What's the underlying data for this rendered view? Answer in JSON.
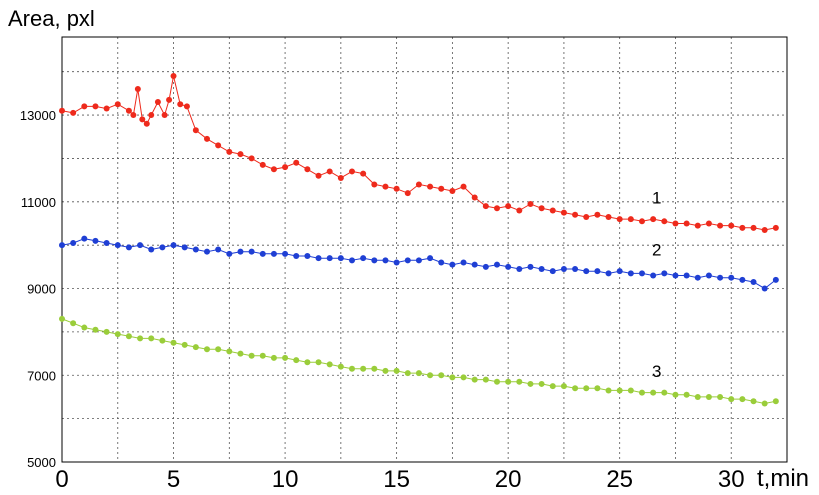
{
  "chart_data": {
    "type": "scatter",
    "ylabel": "Area, pxl",
    "xlabel": "t,min",
    "xlim": [
      0,
      32.5
    ],
    "ylim": [
      5000,
      14800
    ],
    "x_ticks": [
      0,
      5,
      10,
      15,
      20,
      25,
      30
    ],
    "y_ticks": [
      5000,
      7000,
      9000,
      11000,
      13000
    ],
    "grid": true,
    "colors": {
      "1": "#ee2a1c",
      "2": "#1f3fd4",
      "3": "#9acd3a"
    },
    "series": [
      {
        "name": "1",
        "label": "1",
        "color": "#ee2a1c",
        "x": [
          0,
          0.5,
          1,
          1.5,
          2,
          2.5,
          3,
          3.2,
          3.4,
          3.6,
          3.8,
          4,
          4.3,
          4.6,
          4.8,
          5,
          5.3,
          5.6,
          6,
          6.5,
          7,
          7.5,
          8,
          8.5,
          9,
          9.5,
          10,
          10.5,
          11,
          11.5,
          12,
          12.5,
          13,
          13.5,
          14,
          14.5,
          15,
          15.5,
          16,
          16.5,
          17,
          17.5,
          18,
          18.5,
          19,
          19.5,
          20,
          20.5,
          21,
          21.5,
          22,
          22.5,
          23,
          23.5,
          24,
          24.5,
          25,
          25.5,
          26,
          26.5,
          27,
          27.5,
          28,
          28.5,
          29,
          29.5,
          30,
          30.5,
          31,
          31.5,
          32
        ],
        "y": [
          13100,
          13050,
          13200,
          13200,
          13150,
          13250,
          13100,
          13000,
          13600,
          12900,
          12800,
          13000,
          13300,
          13000,
          13350,
          13900,
          13250,
          13200,
          12650,
          12450,
          12300,
          12150,
          12100,
          12000,
          11850,
          11750,
          11800,
          11900,
          11750,
          11600,
          11700,
          11550,
          11700,
          11650,
          11400,
          11350,
          11300,
          11200,
          11400,
          11350,
          11300,
          11250,
          11350,
          11100,
          10900,
          10850,
          10900,
          10800,
          10950,
          10850,
          10800,
          10750,
          10700,
          10650,
          10700,
          10650,
          10600,
          10600,
          10550,
          10600,
          10550,
          10500,
          10500,
          10450,
          10500,
          10450,
          10450,
          10400,
          10400,
          10350,
          10400
        ]
      },
      {
        "name": "2",
        "label": "2",
        "color": "#1f3fd4",
        "x": [
          0,
          0.5,
          1,
          1.5,
          2,
          2.5,
          3,
          3.5,
          4,
          4.5,
          5,
          5.5,
          6,
          6.5,
          7,
          7.5,
          8,
          8.5,
          9,
          9.5,
          10,
          10.5,
          11,
          11.5,
          12,
          12.5,
          13,
          13.5,
          14,
          14.5,
          15,
          15.5,
          16,
          16.5,
          17,
          17.5,
          18,
          18.5,
          19,
          19.5,
          20,
          20.5,
          21,
          21.5,
          22,
          22.5,
          23,
          23.5,
          24,
          24.5,
          25,
          25.5,
          26,
          26.5,
          27,
          27.5,
          28,
          28.5,
          29,
          29.5,
          30,
          30.5,
          31,
          31.5,
          32
        ],
        "y": [
          10000,
          10050,
          10150,
          10100,
          10050,
          10000,
          9950,
          10000,
          9900,
          9950,
          10000,
          9950,
          9900,
          9850,
          9900,
          9800,
          9850,
          9850,
          9800,
          9800,
          9800,
          9750,
          9750,
          9700,
          9700,
          9700,
          9650,
          9700,
          9650,
          9650,
          9600,
          9650,
          9650,
          9700,
          9600,
          9550,
          9600,
          9550,
          9500,
          9550,
          9500,
          9450,
          9500,
          9450,
          9400,
          9450,
          9450,
          9400,
          9400,
          9350,
          9400,
          9350,
          9350,
          9300,
          9350,
          9300,
          9300,
          9250,
          9300,
          9250,
          9250,
          9200,
          9150,
          9000,
          9200
        ]
      },
      {
        "name": "3",
        "label": "3",
        "color": "#9acd3a",
        "x": [
          0,
          0.5,
          1,
          1.5,
          2,
          2.5,
          3,
          3.5,
          4,
          4.5,
          5,
          5.5,
          6,
          6.5,
          7,
          7.5,
          8,
          8.5,
          9,
          9.5,
          10,
          10.5,
          11,
          11.5,
          12,
          12.5,
          13,
          13.5,
          14,
          14.5,
          15,
          15.5,
          16,
          16.5,
          17,
          17.5,
          18,
          18.5,
          19,
          19.5,
          20,
          20.5,
          21,
          21.5,
          22,
          22.5,
          23,
          23.5,
          24,
          24.5,
          25,
          25.5,
          26,
          26.5,
          27,
          27.5,
          28,
          28.5,
          29,
          29.5,
          30,
          30.5,
          31,
          31.5,
          32
        ],
        "y": [
          8300,
          8200,
          8100,
          8050,
          8000,
          7950,
          7900,
          7850,
          7850,
          7800,
          7750,
          7700,
          7650,
          7600,
          7600,
          7550,
          7500,
          7450,
          7450,
          7400,
          7400,
          7350,
          7300,
          7300,
          7250,
          7200,
          7150,
          7150,
          7150,
          7100,
          7100,
          7050,
          7050,
          7000,
          7000,
          6950,
          6950,
          6900,
          6900,
          6850,
          6850,
          6850,
          6800,
          6800,
          6750,
          6750,
          6700,
          6700,
          6700,
          6650,
          6650,
          6650,
          6600,
          6600,
          6600,
          6550,
          6550,
          6500,
          6500,
          6500,
          6450,
          6450,
          6400,
          6350,
          6400
        ]
      }
    ]
  }
}
